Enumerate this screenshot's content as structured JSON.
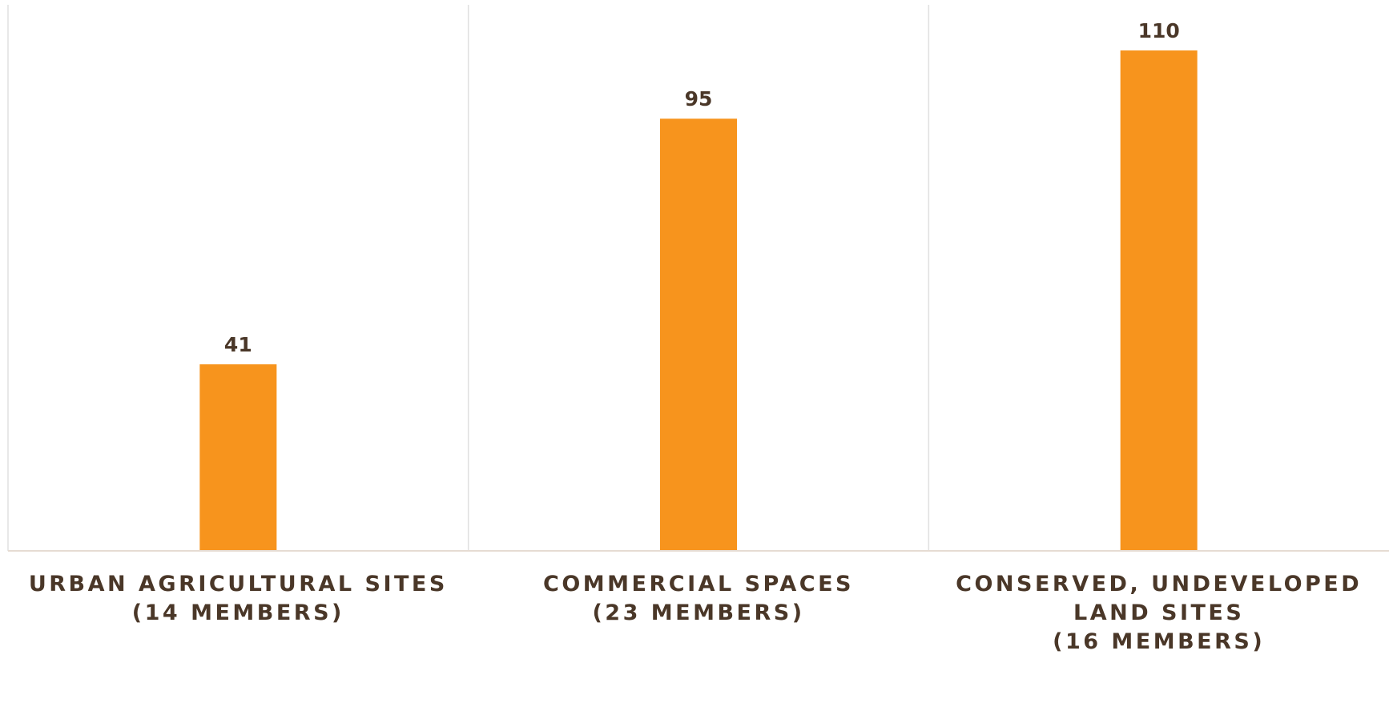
{
  "chart_data": {
    "type": "bar",
    "categories": [
      [
        "URBAN AGRICULTURAL SITES",
        "(14 MEMBERS)"
      ],
      [
        "COMMERCIAL SPACES",
        "(23 MEMBERS)"
      ],
      [
        "CONSERVED, UNDEVELOPED",
        "LAND SITES",
        "(16 MEMBERS)"
      ]
    ],
    "values": [
      41,
      95,
      110
    ],
    "title": "",
    "xlabel": "",
    "ylabel": "",
    "ylim": [
      0,
      120
    ],
    "grid": false,
    "legend": "none",
    "colors": {
      "bar": "#f7941d",
      "text": "#4a3728",
      "axis": "#e6dcd3",
      "divider": "#e0e0e0"
    }
  }
}
